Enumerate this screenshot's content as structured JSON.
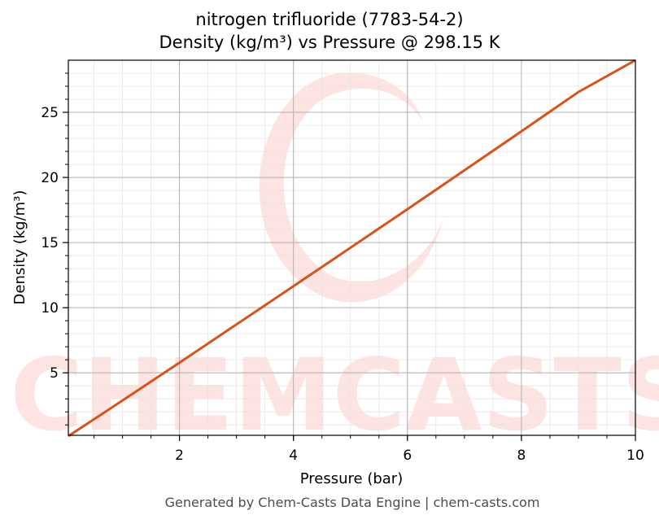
{
  "chart_data": {
    "type": "line",
    "title": "nitrogen trifluoride (7783-54-2)",
    "subtitle": "Density (kg/m³) vs Pressure @ 298.15 K",
    "xlabel": "Pressure (bar)",
    "ylabel": "Density (kg/m³)",
    "xlim": [
      0.05,
      10
    ],
    "ylim": [
      0.2,
      29
    ],
    "xticks": [
      2,
      4,
      6,
      8,
      10
    ],
    "yticks": [
      5,
      10,
      15,
      20,
      25
    ],
    "grid": true,
    "series": [
      {
        "x": [
          0.05,
          1,
          2,
          3,
          4,
          5,
          6,
          7,
          8,
          9,
          10
        ],
        "y": [
          0.14,
          2.87,
          5.78,
          8.71,
          11.65,
          14.6,
          17.56,
          20.54,
          23.54,
          26.56,
          29.0
        ]
      }
    ]
  },
  "colors": {
    "line": "#d95319",
    "grid_major": "#b0b0b0",
    "grid_minor": "#e6e6e6",
    "watermark": "#fde3e1"
  },
  "watermark_text": "CHEMCASTS",
  "footer": "Generated by Chem-Casts Data Engine | chem-casts.com"
}
